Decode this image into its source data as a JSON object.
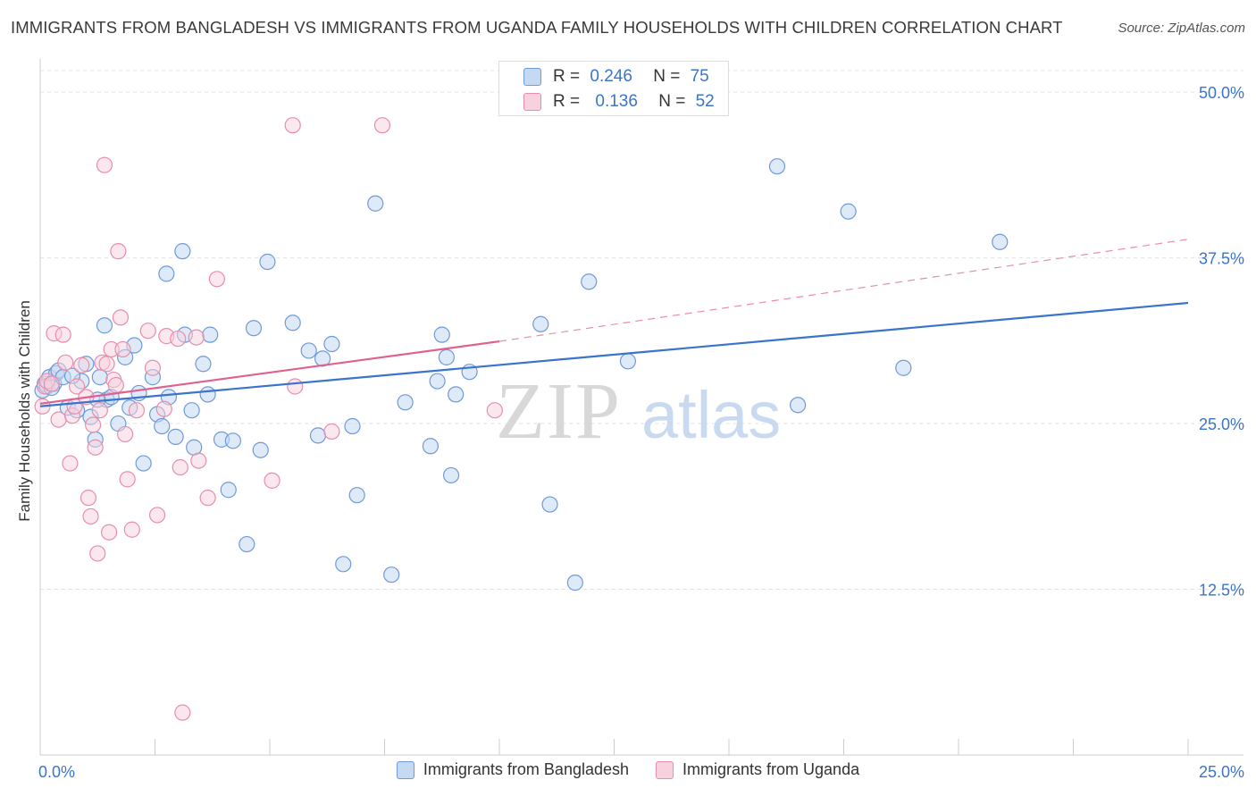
{
  "title": "IMMIGRANTS FROM BANGLADESH VS IMMIGRANTS FROM UGANDA FAMILY HOUSEHOLDS WITH CHILDREN CORRELATION CHART",
  "source": "Source: ZipAtlas.com",
  "watermark": {
    "zip": "ZIP",
    "atlas": "atlas"
  },
  "legend_top": [
    {
      "r_label": "R =",
      "r_value": "0.246",
      "n_label": "N =",
      "n_value": "75"
    },
    {
      "r_label": "R =",
      "r_value": "0.136",
      "n_label": "N =",
      "n_value": "52"
    }
  ],
  "colors": {
    "blue": "#6f9ad8",
    "blue_fill": "#c5d9f3",
    "blue_line": "#3a74cc",
    "pink": "#e88dab",
    "pink_fill": "#f8d1de",
    "pink_line": "#e0608e",
    "tick_label": "#3a74cc",
    "grid": "#e3e3e3"
  },
  "chart_data": {
    "type": "scatter",
    "xlabel": "",
    "ylabel": "Family Households with Children",
    "xlim": [
      0,
      25
    ],
    "ylim": [
      0,
      52.5
    ],
    "x_tick_labels": [
      {
        "value": 0,
        "label": "0.0%"
      },
      {
        "value": 25,
        "label": "25.0%"
      }
    ],
    "y_tick_labels": [
      {
        "value": 12.5,
        "label": "12.5%"
      },
      {
        "value": 25,
        "label": "25.0%"
      },
      {
        "value": 37.5,
        "label": "37.5%"
      },
      {
        "value": 50,
        "label": "50.0%"
      }
    ],
    "grid": true,
    "legend": "bottom-center",
    "series": [
      {
        "name": "Immigrants from Bangladesh",
        "color": "#6f9ad8",
        "points": [
          [
            0.05,
            27.5
          ],
          [
            0.1,
            28.0
          ],
          [
            0.15,
            27.8
          ],
          [
            0.2,
            28.5
          ],
          [
            0.3,
            28.0
          ],
          [
            0.35,
            28.8
          ],
          [
            0.4,
            29.0
          ],
          [
            0.5,
            28.5
          ],
          [
            0.6,
            26.2
          ],
          [
            0.8,
            26.0
          ],
          [
            0.9,
            28.2
          ],
          [
            1.0,
            29.5
          ],
          [
            1.1,
            25.5
          ],
          [
            1.2,
            23.8
          ],
          [
            1.3,
            28.5
          ],
          [
            1.4,
            32.4
          ],
          [
            1.45,
            26.8
          ],
          [
            1.55,
            27.0
          ],
          [
            1.7,
            25.0
          ],
          [
            1.85,
            30.0
          ],
          [
            1.95,
            26.2
          ],
          [
            2.05,
            30.9
          ],
          [
            2.15,
            27.3
          ],
          [
            2.25,
            22.0
          ],
          [
            2.45,
            28.5
          ],
          [
            2.55,
            25.7
          ],
          [
            2.65,
            24.8
          ],
          [
            2.75,
            36.3
          ],
          [
            2.8,
            27.0
          ],
          [
            2.95,
            24.0
          ],
          [
            3.1,
            38.0
          ],
          [
            3.15,
            31.7
          ],
          [
            3.3,
            26.0
          ],
          [
            3.35,
            23.2
          ],
          [
            3.55,
            29.5
          ],
          [
            3.65,
            27.2
          ],
          [
            3.7,
            31.7
          ],
          [
            3.95,
            23.8
          ],
          [
            4.1,
            20.0
          ],
          [
            4.2,
            23.7
          ],
          [
            4.5,
            15.9
          ],
          [
            4.65,
            32.2
          ],
          [
            4.8,
            23.0
          ],
          [
            4.95,
            37.2
          ],
          [
            5.5,
            32.6
          ],
          [
            5.85,
            30.5
          ],
          [
            6.05,
            24.1
          ],
          [
            6.15,
            29.9
          ],
          [
            6.35,
            31.0
          ],
          [
            6.6,
            14.4
          ],
          [
            6.8,
            24.8
          ],
          [
            6.9,
            19.6
          ],
          [
            7.3,
            41.6
          ],
          [
            7.65,
            13.6
          ],
          [
            7.95,
            26.6
          ],
          [
            8.5,
            23.3
          ],
          [
            8.65,
            28.2
          ],
          [
            8.75,
            31.7
          ],
          [
            8.85,
            30.0
          ],
          [
            8.95,
            21.1
          ],
          [
            9.05,
            27.2
          ],
          [
            9.35,
            28.9
          ],
          [
            10.9,
            32.5
          ],
          [
            11.1,
            18.9
          ],
          [
            11.65,
            13.0
          ],
          [
            11.95,
            35.7
          ],
          [
            12.8,
            29.7
          ],
          [
            16.05,
            44.4
          ],
          [
            16.5,
            26.4
          ],
          [
            17.6,
            41.0
          ],
          [
            18.8,
            29.2
          ],
          [
            20.9,
            38.7
          ],
          [
            0.25,
            27.7
          ],
          [
            0.7,
            28.6
          ],
          [
            1.25,
            26.8
          ]
        ],
        "trend": {
          "x0": 0,
          "y0": 26.3,
          "x1": 25,
          "y1": 34.1
        }
      },
      {
        "name": "Immigrants from Uganda",
        "color": "#e88dab",
        "points": [
          [
            0.05,
            26.3
          ],
          [
            0.1,
            27.8
          ],
          [
            0.15,
            28.2
          ],
          [
            0.25,
            28.0
          ],
          [
            0.3,
            31.8
          ],
          [
            0.4,
            25.3
          ],
          [
            0.5,
            31.7
          ],
          [
            0.55,
            29.6
          ],
          [
            0.65,
            22.0
          ],
          [
            0.7,
            25.6
          ],
          [
            0.75,
            26.3
          ],
          [
            0.8,
            27.8
          ],
          [
            0.9,
            29.4
          ],
          [
            1.0,
            27.0
          ],
          [
            1.05,
            19.4
          ],
          [
            1.1,
            18.0
          ],
          [
            1.15,
            24.9
          ],
          [
            1.2,
            23.2
          ],
          [
            1.25,
            15.2
          ],
          [
            1.3,
            26.0
          ],
          [
            1.35,
            29.6
          ],
          [
            1.4,
            44.5
          ],
          [
            1.45,
            29.5
          ],
          [
            1.5,
            16.8
          ],
          [
            1.55,
            30.6
          ],
          [
            1.6,
            28.3
          ],
          [
            1.65,
            27.9
          ],
          [
            1.7,
            38.0
          ],
          [
            1.75,
            33.0
          ],
          [
            1.8,
            30.6
          ],
          [
            1.85,
            24.2
          ],
          [
            1.9,
            20.8
          ],
          [
            2.0,
            17.0
          ],
          [
            2.1,
            26.0
          ],
          [
            2.35,
            32.0
          ],
          [
            2.45,
            29.2
          ],
          [
            2.55,
            18.1
          ],
          [
            2.7,
            26.1
          ],
          [
            2.75,
            31.6
          ],
          [
            3.0,
            31.4
          ],
          [
            3.05,
            21.7
          ],
          [
            3.1,
            3.2
          ],
          [
            3.4,
            31.5
          ],
          [
            3.45,
            22.2
          ],
          [
            3.65,
            19.4
          ],
          [
            3.85,
            35.9
          ],
          [
            5.05,
            20.7
          ],
          [
            5.5,
            47.5
          ],
          [
            5.55,
            27.8
          ],
          [
            6.35,
            24.4
          ],
          [
            7.45,
            47.5
          ],
          [
            9.9,
            26.0
          ]
        ],
        "trend": {
          "x0": 0,
          "y0": 26.5,
          "x1": 10.0,
          "y1": 31.2
        },
        "trend_dashed": {
          "x0": 10.0,
          "y0": 31.2,
          "x1": 25,
          "y1": 38.9
        }
      }
    ]
  }
}
